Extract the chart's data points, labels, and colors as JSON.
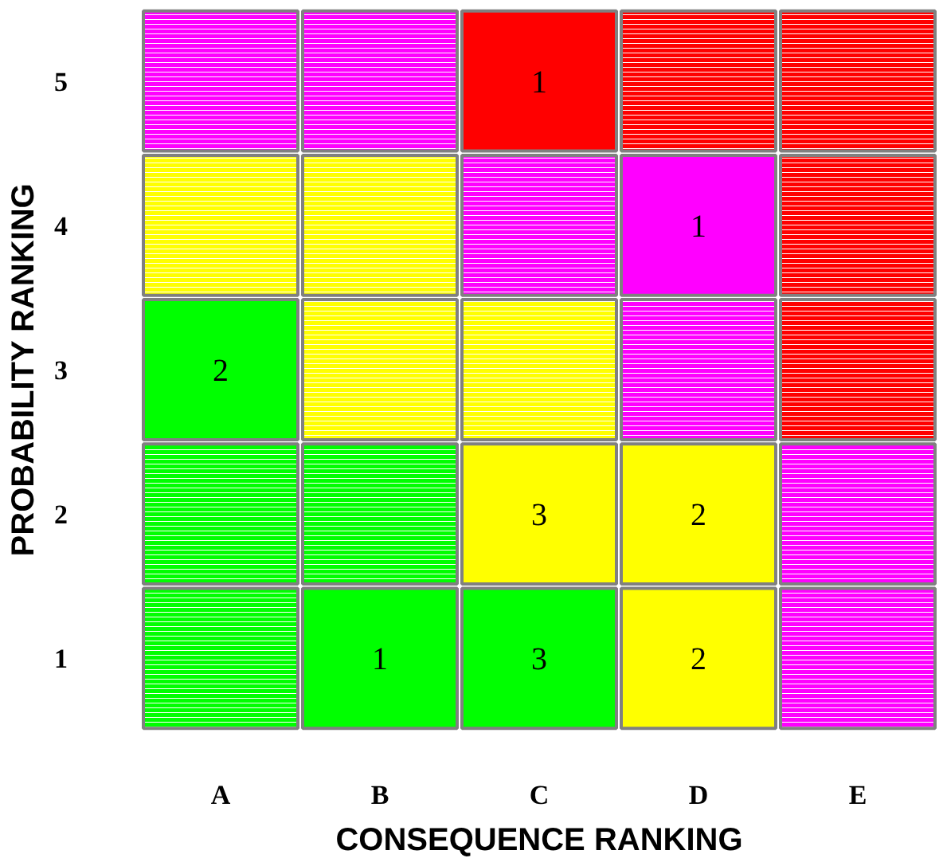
{
  "chart_data": {
    "type": "heatmap",
    "xlabel": "CONSEQUENCE RANKING",
    "ylabel": "PROBABILITY RANKING",
    "categories": [
      "A",
      "B",
      "C",
      "D",
      "E"
    ],
    "y_categories": [
      "5",
      "4",
      "3",
      "2",
      "1"
    ],
    "cells": [
      [
        null,
        null,
        1,
        null,
        null
      ],
      [
        null,
        null,
        null,
        1,
        null
      ],
      [
        2,
        null,
        null,
        null,
        null
      ],
      [
        null,
        null,
        3,
        2,
        null
      ],
      [
        null,
        1,
        3,
        2,
        null
      ]
    ],
    "colors": [
      [
        "#ff00ff",
        "#ff00ff",
        "#ff0000",
        "#ff0000",
        "#ff0000"
      ],
      [
        "#ffff00",
        "#ffff00",
        "#ff00ff",
        "#ff00ff",
        "#ff0000"
      ],
      [
        "#00ff00",
        "#ffff00",
        "#ffff00",
        "#ff00ff",
        "#ff0000"
      ],
      [
        "#00ff00",
        "#00ff00",
        "#ffff00",
        "#ffff00",
        "#ff00ff"
      ],
      [
        "#00ff00",
        "#00ff00",
        "#00ff00",
        "#ffff00",
        "#ff00ff"
      ]
    ],
    "data_labels": true
  }
}
